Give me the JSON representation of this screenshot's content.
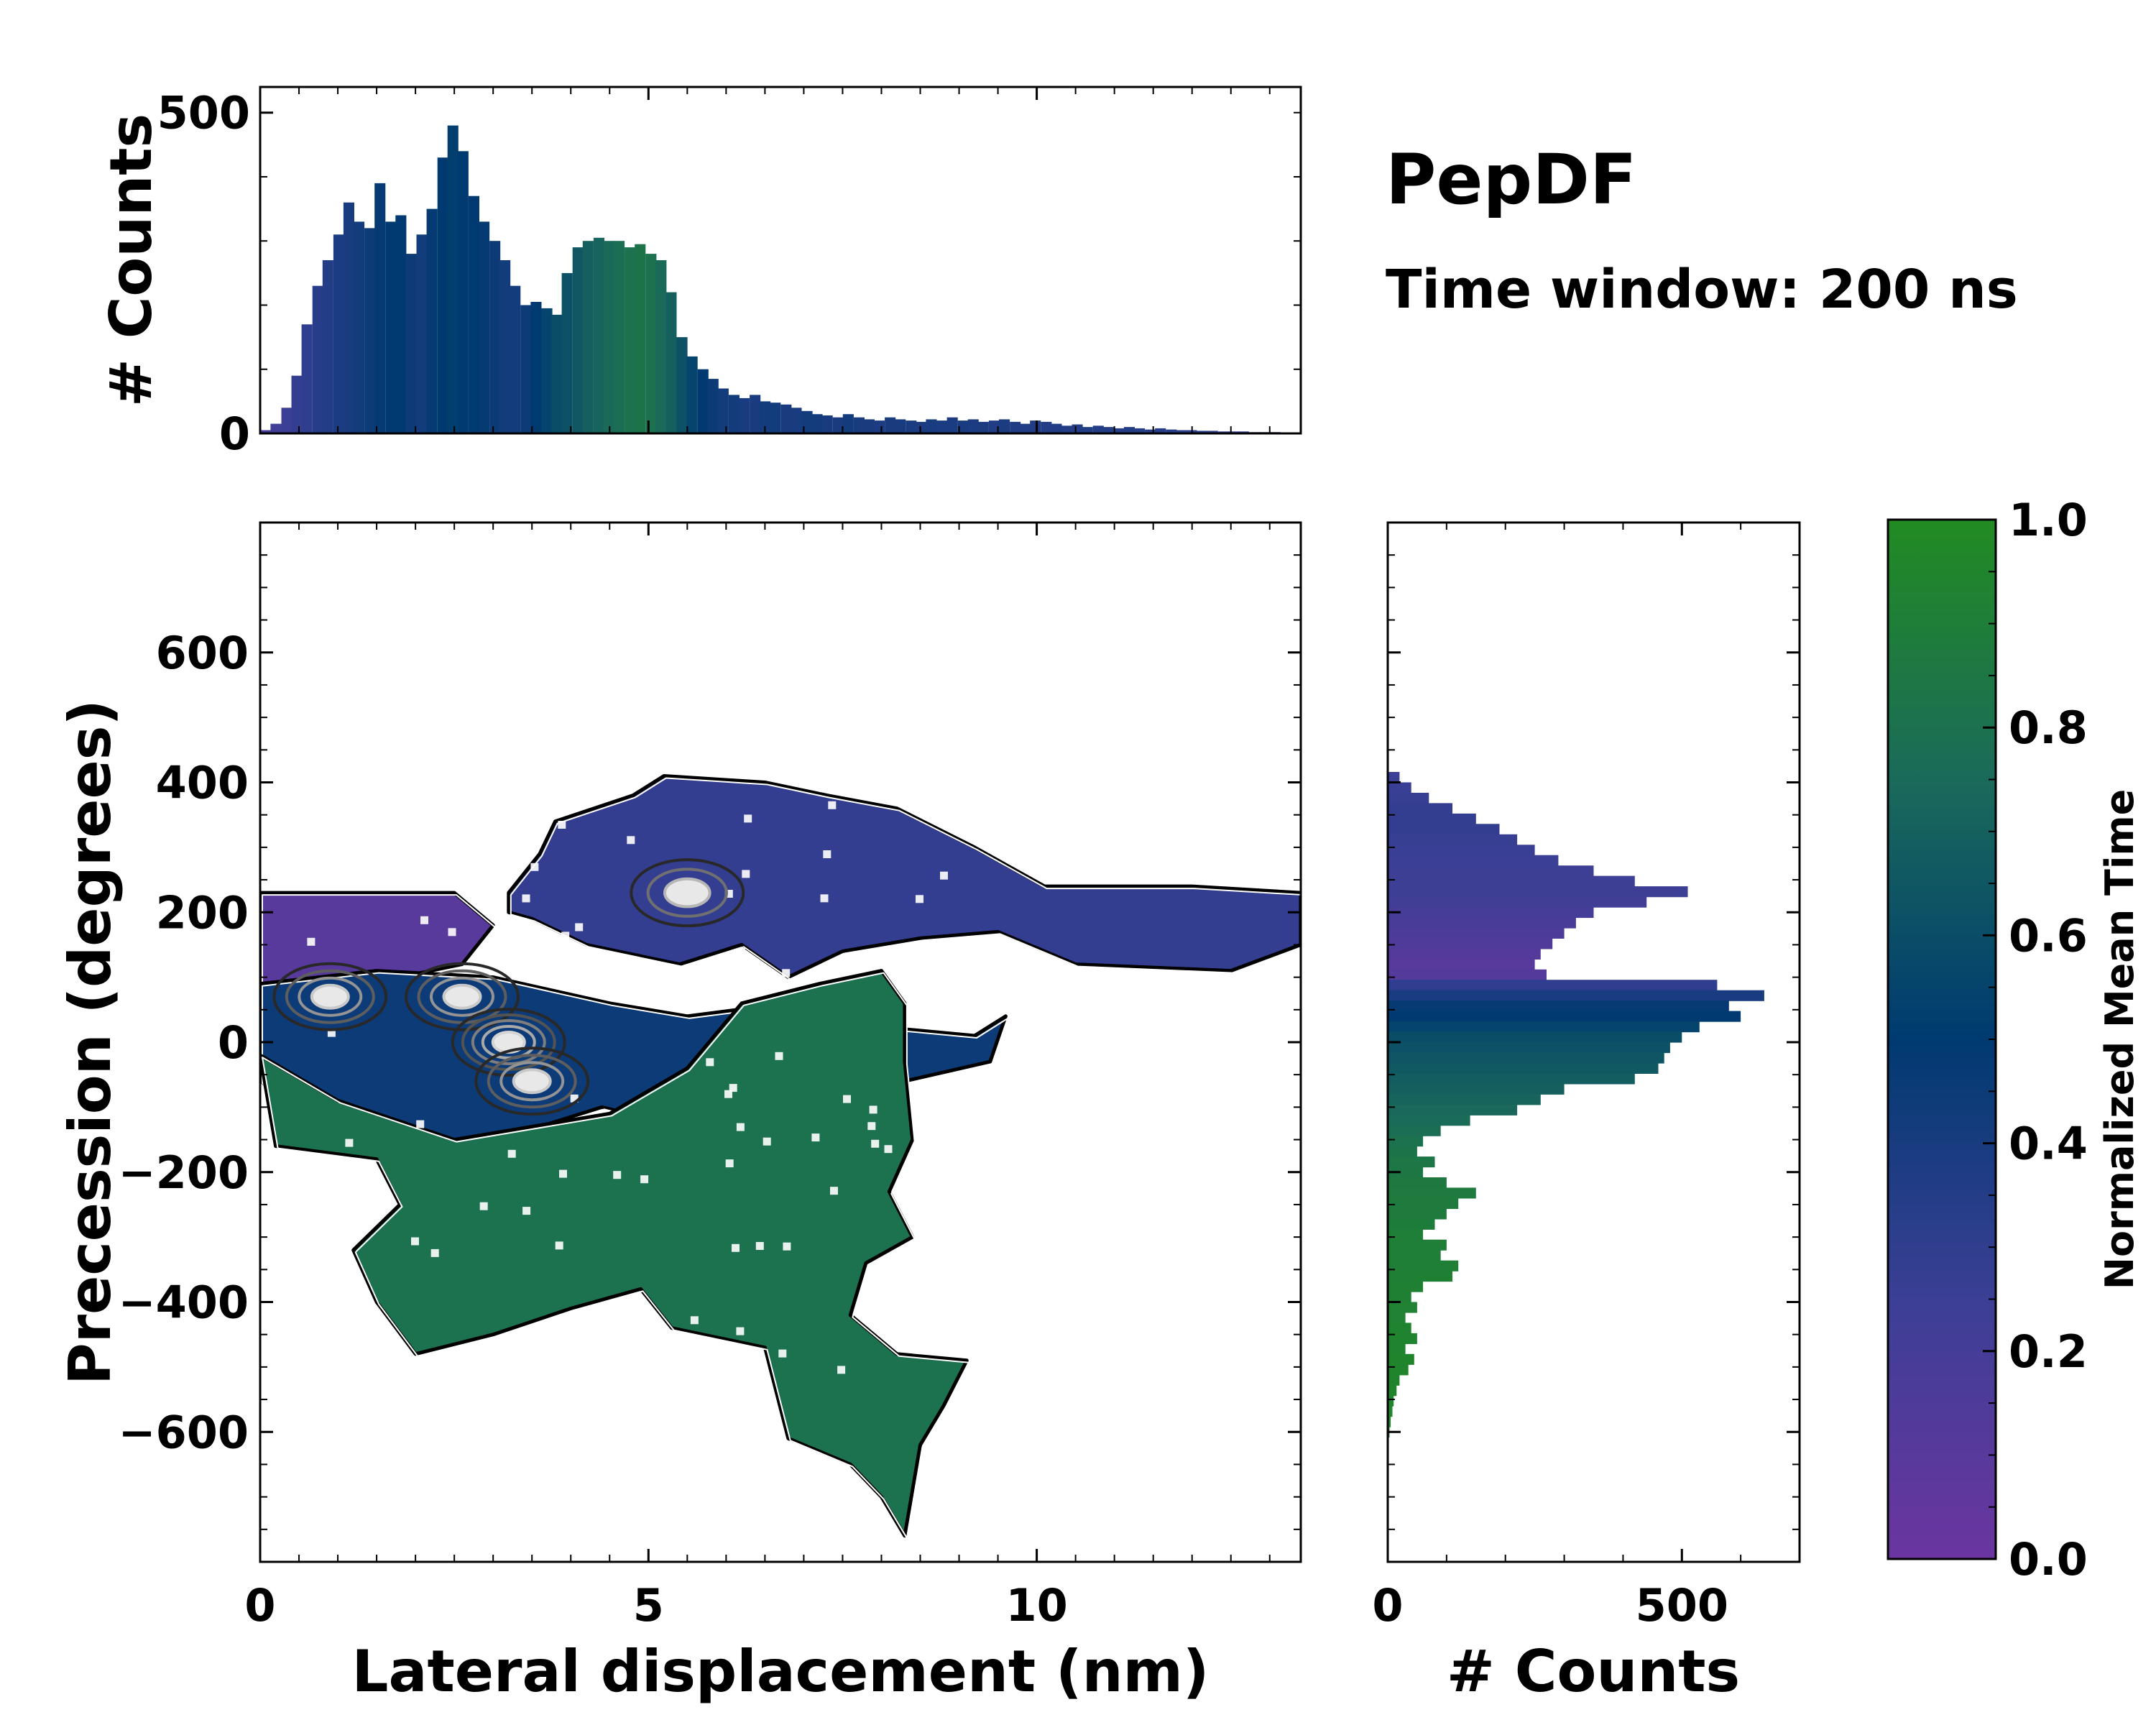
{
  "figure": {
    "title": "PepDF",
    "subtitle": "Time window: 200 ns"
  },
  "colors": {
    "cmap": [
      "#6b35a0",
      "#3b3f95",
      "#003a70",
      "#1a6a5a",
      "#228b22"
    ],
    "contour_outer": "#000000",
    "contour_inner": "#222222",
    "contour_peak": "#dddddd"
  },
  "chart_data": [
    {
      "id": "top_histogram",
      "type": "bar",
      "ylabel": "# Counts",
      "xlim": [
        0,
        13.4
      ],
      "ylim": [
        0,
        540
      ],
      "yticks": [
        0,
        500
      ],
      "xticks": [
        0,
        5,
        10
      ],
      "bin_width": 0.134,
      "x": [
        0.07,
        0.2,
        0.34,
        0.47,
        0.6,
        0.74,
        0.87,
        1.01,
        1.14,
        1.27,
        1.41,
        1.54,
        1.68,
        1.81,
        1.94,
        2.08,
        2.21,
        2.35,
        2.48,
        2.61,
        2.75,
        2.88,
        3.02,
        3.15,
        3.28,
        3.42,
        3.55,
        3.69,
        3.82,
        3.95,
        4.09,
        4.22,
        4.36,
        4.49,
        4.62,
        4.76,
        4.89,
        5.03,
        5.16,
        5.29,
        5.43,
        5.56,
        5.7,
        5.83,
        5.96,
        6.1,
        6.23,
        6.37,
        6.5,
        6.63,
        6.77,
        6.9,
        7.04,
        7.17,
        7.3,
        7.44,
        7.57,
        7.71,
        7.84,
        7.97,
        8.11,
        8.24,
        8.38,
        8.51,
        8.64,
        8.78,
        8.91,
        9.05,
        9.18,
        9.31,
        9.45,
        9.58,
        9.72,
        9.85,
        9.98,
        10.12,
        10.25,
        10.39,
        10.52,
        10.65,
        10.79,
        10.92,
        11.06,
        11.19,
        11.32,
        11.46,
        11.59,
        11.73,
        11.86,
        11.99,
        12.13,
        12.26,
        12.4,
        12.53,
        12.66,
        12.8,
        12.93,
        13.07,
        13.2,
        13.33
      ],
      "values": [
        5,
        15,
        40,
        90,
        170,
        230,
        270,
        310,
        360,
        330,
        320,
        390,
        330,
        340,
        280,
        310,
        350,
        430,
        480,
        440,
        370,
        330,
        300,
        270,
        230,
        200,
        205,
        195,
        185,
        250,
        290,
        300,
        305,
        300,
        300,
        290,
        295,
        280,
        270,
        220,
        150,
        120,
        100,
        85,
        70,
        60,
        55,
        60,
        50,
        48,
        45,
        40,
        35,
        30,
        28,
        25,
        30,
        25,
        22,
        20,
        25,
        22,
        20,
        18,
        22,
        20,
        25,
        20,
        22,
        18,
        20,
        22,
        18,
        15,
        20,
        18,
        15,
        12,
        14,
        10,
        12,
        10,
        8,
        10,
        8,
        6,
        8,
        6,
        5,
        5,
        4,
        4,
        3,
        3,
        3,
        2,
        2,
        2,
        1,
        1
      ],
      "norm_time": [
        0.2,
        0.22,
        0.25,
        0.28,
        0.3,
        0.33,
        0.35,
        0.38,
        0.4,
        0.42,
        0.45,
        0.48,
        0.5,
        0.5,
        0.45,
        0.42,
        0.48,
        0.5,
        0.52,
        0.5,
        0.5,
        0.48,
        0.45,
        0.42,
        0.42,
        0.45,
        0.5,
        0.55,
        0.6,
        0.62,
        0.65,
        0.7,
        0.72,
        0.75,
        0.78,
        0.8,
        0.82,
        0.8,
        0.75,
        0.7,
        0.62,
        0.55,
        0.5,
        0.45,
        0.42,
        0.42,
        0.4,
        0.4,
        0.42,
        0.42,
        0.4,
        0.4,
        0.42,
        0.42,
        0.4,
        0.4,
        0.42,
        0.4,
        0.4,
        0.38,
        0.4,
        0.4,
        0.38,
        0.38,
        0.4,
        0.38,
        0.38,
        0.4,
        0.38,
        0.38,
        0.36,
        0.38,
        0.36,
        0.36,
        0.36,
        0.35,
        0.36,
        0.35,
        0.35,
        0.36,
        0.35,
        0.35,
        0.34,
        0.35,
        0.34,
        0.34,
        0.33,
        0.33,
        0.32,
        0.32,
        0.32,
        0.3,
        0.3,
        0.3,
        0.3,
        0.3,
        0.3,
        0.3,
        0.3,
        0.3
      ]
    },
    {
      "id": "main_2d_histogram",
      "type": "heatmap",
      "xlabel": "Lateral displacement (nm)",
      "ylabel": "Precession (degrees)",
      "xlim": [
        0,
        13.4
      ],
      "ylim": [
        -800,
        800
      ],
      "xticks": [
        0,
        5,
        10
      ],
      "yticks": [
        -600,
        -400,
        -200,
        0,
        200,
        400,
        600
      ],
      "regions": [
        {
          "name": "upper-left purple",
          "norm_time": 0.1,
          "outline": [
            [
              0,
              230
            ],
            [
              2.5,
              230
            ],
            [
              3,
              180
            ],
            [
              2.6,
              120
            ],
            [
              1.8,
              100
            ],
            [
              0.5,
              60
            ],
            [
              0,
              70
            ]
          ]
        },
        {
          "name": "upper band",
          "norm_time": 0.28,
          "outline": [
            [
              3.2,
              230
            ],
            [
              3.6,
              290
            ],
            [
              3.8,
              340
            ],
            [
              4.8,
              380
            ],
            [
              5.2,
              410
            ],
            [
              6.5,
              400
            ],
            [
              7.3,
              380
            ],
            [
              8.2,
              360
            ],
            [
              9.2,
              300
            ],
            [
              10.1,
              240
            ],
            [
              12,
              240
            ],
            [
              13.4,
              230
            ],
            [
              13.4,
              150
            ],
            [
              12.5,
              110
            ],
            [
              10.5,
              120
            ],
            [
              9.5,
              170
            ],
            [
              8.5,
              160
            ],
            [
              7.5,
              140
            ],
            [
              6.8,
              100
            ],
            [
              6.2,
              150
            ],
            [
              5.4,
              120
            ],
            [
              4.2,
              150
            ],
            [
              3.5,
              190
            ],
            [
              3.2,
              200
            ]
          ]
        },
        {
          "name": "central blue",
          "norm_time": 0.45,
          "outline": [
            [
              0,
              90
            ],
            [
              1.5,
              110
            ],
            [
              3,
              100
            ],
            [
              4.5,
              60
            ],
            [
              5.5,
              40
            ],
            [
              6.8,
              60
            ],
            [
              7.8,
              70
            ],
            [
              8.3,
              20
            ],
            [
              9.2,
              10
            ],
            [
              9.6,
              40
            ],
            [
              9.4,
              -30
            ],
            [
              8.3,
              -60
            ],
            [
              7.2,
              -120
            ],
            [
              5.8,
              -140
            ],
            [
              4.4,
              -100
            ],
            [
              2.8,
              -160
            ],
            [
              1,
              -130
            ],
            [
              0,
              -60
            ]
          ]
        },
        {
          "name": "lower green",
          "norm_time": 0.8,
          "outline": [
            [
              0,
              -20
            ],
            [
              1,
              -90
            ],
            [
              2.5,
              -150
            ],
            [
              4.5,
              -110
            ],
            [
              5.5,
              -40
            ],
            [
              6.2,
              60
            ],
            [
              7.2,
              90
            ],
            [
              8,
              110
            ],
            [
              8.3,
              60
            ],
            [
              8.3,
              -30
            ],
            [
              8.4,
              -150
            ],
            [
              8.1,
              -230
            ],
            [
              8.4,
              -300
            ],
            [
              7.8,
              -340
            ],
            [
              7.6,
              -420
            ],
            [
              8.2,
              -480
            ],
            [
              9.1,
              -490
            ],
            [
              8.8,
              -560
            ],
            [
              8.5,
              -620
            ],
            [
              8.3,
              -760
            ],
            [
              8,
              -700
            ],
            [
              7.6,
              -650
            ],
            [
              6.8,
              -610
            ],
            [
              6.5,
              -470
            ],
            [
              5.3,
              -440
            ],
            [
              4.9,
              -380
            ],
            [
              4,
              -410
            ],
            [
              3,
              -450
            ],
            [
              2,
              -480
            ],
            [
              1.5,
              -400
            ],
            [
              1.2,
              -320
            ],
            [
              1.8,
              -250
            ],
            [
              1.5,
              -180
            ],
            [
              0.2,
              -160
            ]
          ]
        }
      ],
      "density_peaks": [
        {
          "x": 0.9,
          "y": 70,
          "level": "high"
        },
        {
          "x": 2.6,
          "y": 70,
          "level": "high"
        },
        {
          "x": 3.2,
          "y": 0,
          "level": "max"
        },
        {
          "x": 3.5,
          "y": -60,
          "level": "high"
        },
        {
          "x": 5.5,
          "y": 230,
          "level": "mid"
        }
      ]
    },
    {
      "id": "right_histogram",
      "type": "bar",
      "orientation": "horizontal",
      "xlabel": "# Counts",
      "xlim": [
        0,
        700
      ],
      "xticks": [
        0,
        500
      ],
      "ylim": [
        -800,
        800
      ],
      "bin_width": 16,
      "y": [
        408,
        392,
        376,
        360,
        344,
        328,
        312,
        296,
        280,
        264,
        248,
        232,
        216,
        200,
        184,
        168,
        152,
        136,
        120,
        104,
        88,
        72,
        56,
        40,
        24,
        8,
        -8,
        -24,
        -40,
        -56,
        -72,
        -88,
        -104,
        -120,
        -136,
        -152,
        -168,
        -184,
        -200,
        -216,
        -232,
        -248,
        -264,
        -280,
        -296,
        -312,
        -328,
        -344,
        -360,
        -376,
        -392,
        -408,
        -424,
        -440,
        -456,
        -472,
        -488,
        -504,
        -520,
        -536,
        -552,
        -568,
        -584,
        -600
      ],
      "values": [
        20,
        40,
        70,
        110,
        150,
        190,
        220,
        250,
        290,
        350,
        420,
        510,
        440,
        350,
        320,
        300,
        280,
        260,
        250,
        270,
        560,
        640,
        580,
        600,
        530,
        500,
        480,
        470,
        460,
        420,
        300,
        260,
        220,
        140,
        90,
        60,
        50,
        80,
        60,
        100,
        150,
        120,
        100,
        80,
        60,
        100,
        90,
        120,
        110,
        60,
        40,
        50,
        30,
        40,
        50,
        30,
        45,
        35,
        20,
        15,
        10,
        8,
        5,
        3
      ],
      "norm_time": [
        0.25,
        0.26,
        0.27,
        0.28,
        0.28,
        0.28,
        0.27,
        0.26,
        0.25,
        0.24,
        0.24,
        0.24,
        0.22,
        0.2,
        0.18,
        0.16,
        0.14,
        0.12,
        0.1,
        0.12,
        0.3,
        0.4,
        0.48,
        0.5,
        0.55,
        0.6,
        0.62,
        0.64,
        0.66,
        0.68,
        0.7,
        0.72,
        0.74,
        0.76,
        0.78,
        0.8,
        0.82,
        0.84,
        0.85,
        0.86,
        0.87,
        0.88,
        0.88,
        0.89,
        0.9,
        0.9,
        0.9,
        0.91,
        0.92,
        0.92,
        0.92,
        0.93,
        0.93,
        0.94,
        0.94,
        0.94,
        0.95,
        0.95,
        0.95,
        0.95,
        0.96,
        0.96,
        0.96,
        0.96
      ]
    },
    {
      "id": "colorbar",
      "type": "colorbar",
      "label": "Normalized Mean Time",
      "range": [
        0,
        1
      ],
      "ticks": [
        "0.0",
        "0.2",
        "0.4",
        "0.6",
        "0.8",
        "1.0"
      ]
    }
  ]
}
